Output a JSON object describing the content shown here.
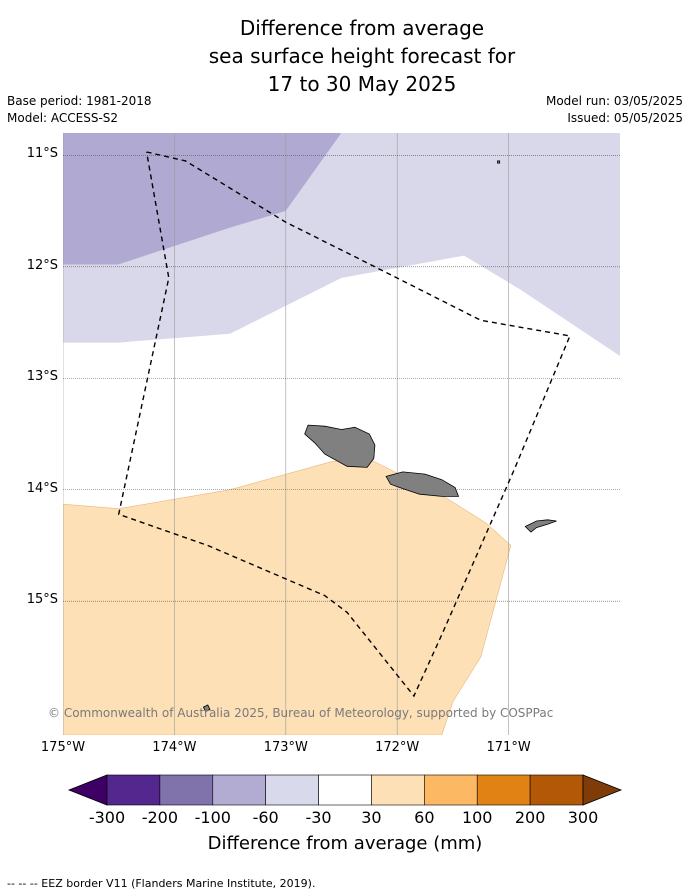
{
  "title": {
    "line1": "Difference from average",
    "line2": "sea surface height forecast for",
    "line3": "17 to 30 May 2025"
  },
  "meta": {
    "base_period": "Base period: 1981-2018",
    "model": "Model: ACCESS-S2",
    "model_run": "Model run: 03/05/2025",
    "issued": "Issued: 05/05/2025"
  },
  "map": {
    "lon_range": [
      -175.0,
      -170.0
    ],
    "lat_range": [
      -16.2,
      -10.8
    ],
    "lat_ticks": [
      {
        "value": -11,
        "label": "11°S"
      },
      {
        "value": -12,
        "label": "12°S"
      },
      {
        "value": -13,
        "label": "13°S"
      },
      {
        "value": -14,
        "label": "14°S"
      },
      {
        "value": -15,
        "label": "15°S"
      }
    ],
    "lon_ticks": [
      {
        "value": -175,
        "label": "175°W"
      },
      {
        "value": -174,
        "label": "174°W"
      },
      {
        "value": -173,
        "label": "173°W"
      },
      {
        "value": -172,
        "label": "172°W"
      },
      {
        "value": -171,
        "label": "171°W"
      }
    ],
    "colors": {
      "band_-100_-60": "#b0a9d1",
      "band_-60_-30": "#d8d8ea",
      "band_30_60": "#fde0b6",
      "land": "#808080",
      "eez": "#000000"
    },
    "regions": [
      {
        "name": "anomaly-band-minus100-minus60",
        "color_key": "band_-100_-60",
        "points": [
          [
            -175.0,
            -10.8
          ],
          [
            -172.5,
            -10.8
          ],
          [
            -173.0,
            -11.5
          ],
          [
            -173.5,
            -11.65
          ],
          [
            -174.5,
            -11.98
          ],
          [
            -175.0,
            -11.98
          ]
        ]
      },
      {
        "name": "anomaly-band-minus60-minus30",
        "color_key": "band_-60_-30",
        "points": [
          [
            -172.5,
            -10.8
          ],
          [
            -170.0,
            -10.8
          ],
          [
            -170.0,
            -12.8
          ],
          [
            -170.9,
            -12.2
          ],
          [
            -171.4,
            -11.9
          ],
          [
            -172.5,
            -12.1
          ],
          [
            -173.3,
            -12.5
          ],
          [
            -173.5,
            -12.6
          ],
          [
            -174.5,
            -12.68
          ],
          [
            -175.0,
            -12.68
          ],
          [
            -175.0,
            -11.98
          ],
          [
            -174.5,
            -11.98
          ],
          [
            -173.5,
            -11.65
          ],
          [
            -173.0,
            -11.5
          ]
        ]
      },
      {
        "name": "anomaly-band-30-60",
        "color_key": "band_30_60",
        "points": [
          [
            -175.0,
            -14.13
          ],
          [
            -174.5,
            -14.17
          ],
          [
            -173.5,
            -14.0
          ],
          [
            -172.6,
            -13.75
          ],
          [
            -172.3,
            -13.7
          ],
          [
            -172.0,
            -13.85
          ],
          [
            -171.6,
            -14.05
          ],
          [
            -171.2,
            -14.3
          ],
          [
            -170.98,
            -14.5
          ],
          [
            -171.25,
            -15.5
          ],
          [
            -171.5,
            -15.9
          ],
          [
            -171.6,
            -16.2
          ],
          [
            -175.0,
            -16.2
          ]
        ]
      }
    ],
    "islands": [
      {
        "name": "savaii-island",
        "points": [
          [
            -172.8,
            -13.42
          ],
          [
            -172.65,
            -13.43
          ],
          [
            -172.5,
            -13.46
          ],
          [
            -172.38,
            -13.44
          ],
          [
            -172.25,
            -13.5
          ],
          [
            -172.2,
            -13.6
          ],
          [
            -172.21,
            -13.72
          ],
          [
            -172.27,
            -13.8
          ],
          [
            -172.45,
            -13.79
          ],
          [
            -172.65,
            -13.68
          ],
          [
            -172.74,
            -13.58
          ],
          [
            -172.83,
            -13.5
          ]
        ]
      },
      {
        "name": "upolu-island",
        "points": [
          [
            -172.1,
            -13.88
          ],
          [
            -171.95,
            -13.84
          ],
          [
            -171.75,
            -13.86
          ],
          [
            -171.6,
            -13.91
          ],
          [
            -171.48,
            -13.98
          ],
          [
            -171.45,
            -14.06
          ],
          [
            -171.6,
            -14.06
          ],
          [
            -171.8,
            -14.04
          ],
          [
            -171.95,
            -13.99
          ],
          [
            -172.06,
            -13.95
          ]
        ]
      },
      {
        "name": "tutuila-island",
        "points": [
          [
            -170.85,
            -14.33
          ],
          [
            -170.75,
            -14.28
          ],
          [
            -170.65,
            -14.27
          ],
          [
            -170.57,
            -14.28
          ],
          [
            -170.65,
            -14.31
          ],
          [
            -170.75,
            -14.34
          ],
          [
            -170.8,
            -14.38
          ]
        ]
      },
      {
        "name": "small-islet-north",
        "points": [
          [
            -171.1,
            -11.05
          ],
          [
            -171.08,
            -11.05
          ],
          [
            -171.08,
            -11.07
          ],
          [
            -171.1,
            -11.07
          ]
        ]
      },
      {
        "name": "small-islet-south",
        "points": [
          [
            -173.74,
            -15.95
          ],
          [
            -173.7,
            -15.93
          ],
          [
            -173.68,
            -15.97
          ],
          [
            -173.72,
            -15.99
          ]
        ]
      }
    ],
    "eez_border": [
      [
        -174.25,
        -10.97
      ],
      [
        -173.9,
        -11.05
      ],
      [
        -173.0,
        -11.6
      ],
      [
        -172.3,
        -11.95
      ],
      [
        -171.25,
        -12.48
      ],
      [
        -170.45,
        -12.62
      ],
      [
        -170.95,
        -13.82
      ],
      [
        -171.6,
        -15.3
      ],
      [
        -171.85,
        -15.85
      ],
      [
        -172.45,
        -15.1
      ],
      [
        -172.65,
        -14.95
      ],
      [
        -173.7,
        -14.5
      ],
      [
        -174.5,
        -14.22
      ],
      [
        -174.05,
        -12.1
      ],
      [
        -174.25,
        -10.97
      ]
    ]
  },
  "copyright": "© Commonwealth of Australia 2025, Bureau of Meteorology, supported by COSPPac",
  "colorbar": {
    "label": "Difference from average (mm)",
    "low_extend_color": "#3f0065",
    "high_extend_color": "#7f3b08",
    "bins": [
      "#54278f",
      "#8073ac",
      "#b2abd2",
      "#d8daeb",
      "#ffffff",
      "#fee0b6",
      "#fdb863",
      "#e08214",
      "#b35806"
    ],
    "ticks": [
      "-300",
      "-200",
      "-100",
      "-60",
      "-30",
      "30",
      "60",
      "100",
      "200",
      "300"
    ]
  },
  "legend_note": "--  --  -- EEZ border V11 (Flanders Marine Institute, 2019)."
}
